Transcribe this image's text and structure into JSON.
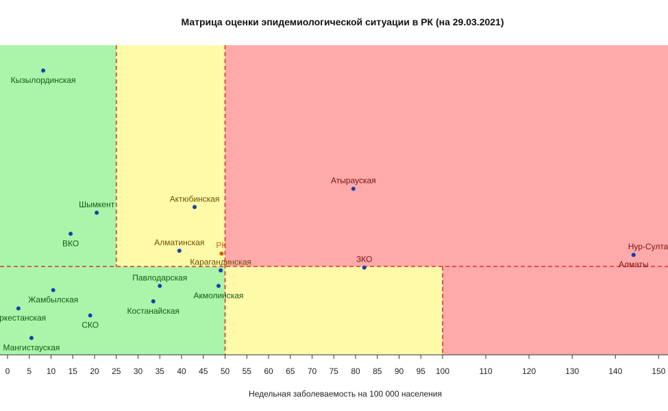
{
  "chart_data": {
    "type": "scatter",
    "title": "Матрица оценки эпидемиологической ситуации в РК (на 29.03.2021)",
    "xlabel": "Недельная заболеваемость на 100 000 населения",
    "ylabel": "",
    "xlim": [
      -2,
      153
    ],
    "x_ticks": [
      0,
      5,
      10,
      15,
      20,
      25,
      30,
      35,
      40,
      45,
      50,
      55,
      60,
      65,
      70,
      75,
      80,
      85,
      90,
      95,
      100,
      110,
      120,
      130,
      140,
      150
    ],
    "zones": [
      {
        "name": "green",
        "color": "#aaf5aa",
        "x": [
          -2,
          25
        ],
        "y": "upper"
      },
      {
        "name": "yellow",
        "color": "#fffaa8",
        "x": [
          25,
          50
        ],
        "y": "upper"
      },
      {
        "name": "red",
        "color": "#ffaaaa",
        "x": [
          50,
          153
        ],
        "y": "upper"
      },
      {
        "name": "green",
        "color": "#aaf5aa",
        "x": [
          -2,
          50
        ],
        "y": "lower"
      },
      {
        "name": "yellow",
        "color": "#fffaa8",
        "x": [
          50,
          100
        ],
        "y": "lower"
      },
      {
        "name": "red",
        "color": "#ffaaaa",
        "x": [
          100,
          153
        ],
        "y": "lower"
      }
    ],
    "thresholds_x": [
      25,
      50,
      100
    ],
    "threshold_color": "#dd3333",
    "points": [
      {
        "label": "Кызылординская",
        "x": 8.2,
        "y": 0.91,
        "color": "#1a3fa8",
        "pos": "below"
      },
      {
        "label": "Атырауская",
        "x": 79.5,
        "y": 0.49,
        "color": "#1a3fa8",
        "pos": "above"
      },
      {
        "label": "Актюбинская",
        "x": 43,
        "y": 0.425,
        "color": "#1a3fa8",
        "pos": "above"
      },
      {
        "label": "Шымкент",
        "x": 20.5,
        "y": 0.405,
        "color": "#1a3fa8",
        "pos": "above"
      },
      {
        "label": "ВКО",
        "x": 14.5,
        "y": 0.33,
        "color": "#1a3fa8",
        "pos": "below"
      },
      {
        "label": "Алматинская",
        "x": 39.5,
        "y": 0.27,
        "color": "#1a3fa8",
        "pos": "above"
      },
      {
        "label": "РК",
        "x": 49.2,
        "y": 0.26,
        "color": "#d85a10",
        "pos": "above-right"
      },
      {
        "label": "Нур-Султан",
        "x": 144.2,
        "y": 0.255,
        "color": "#1a3fa8",
        "pos": "above-right"
      },
      {
        "label": "Алматы",
        "x": 144.2,
        "y": 0.255,
        "color": "#1a3fa8",
        "pos": "below"
      },
      {
        "label": "ЗКО",
        "x": 82,
        "y": 0.21,
        "color": "#1a3fa8",
        "pos": "above"
      },
      {
        "label": "Карагандинская",
        "x": 49,
        "y": 0.2,
        "color": "#1a3fa8",
        "pos": "above"
      },
      {
        "label": "Павлодарская",
        "x": 35,
        "y": 0.145,
        "color": "#1a3fa8",
        "pos": "above"
      },
      {
        "label": "Акмолинская",
        "x": 48.5,
        "y": 0.145,
        "color": "#1a3fa8",
        "pos": "below"
      },
      {
        "label": "Жамбылская",
        "x": 10.5,
        "y": 0.13,
        "color": "#1a3fa8",
        "pos": "below"
      },
      {
        "label": "Костанайская",
        "x": 33.5,
        "y": 0.09,
        "color": "#1a3fa8",
        "pos": "below"
      },
      {
        "label": "Туркестанская",
        "x": 2.5,
        "y": 0.065,
        "color": "#1a3fa8",
        "pos": "below"
      },
      {
        "label": "СКО",
        "x": 19,
        "y": 0.04,
        "color": "#1a3fa8",
        "pos": "below"
      },
      {
        "label": "Мангистауская",
        "x": 5.5,
        "y": -0.04,
        "color": "#1a3fa8",
        "pos": "below"
      }
    ]
  }
}
